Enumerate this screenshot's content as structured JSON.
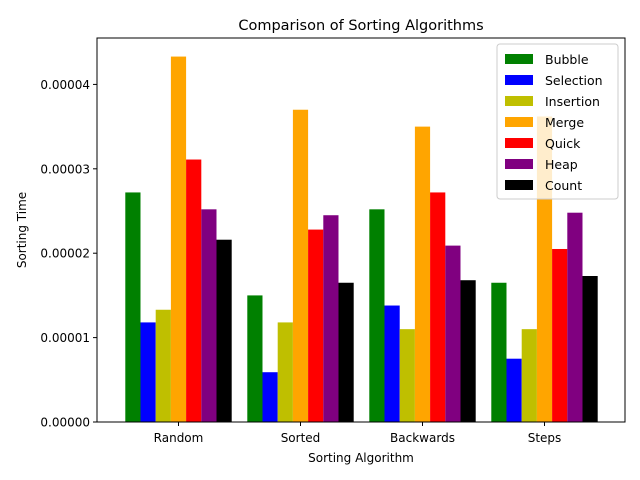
{
  "chart_data": {
    "type": "bar",
    "title": "Comparison of Sorting Algorithms",
    "xlabel": "Sorting Algorithm",
    "ylabel": "Sorting Time",
    "categories": [
      "Random",
      "Sorted",
      "Backwards",
      "Steps"
    ],
    "ylim": [
      0,
      4.55e-05
    ],
    "yticks": [
      "0.00000",
      "0.00001",
      "0.00002",
      "0.00003",
      "0.00004"
    ],
    "grid": false,
    "legend_position": "top-right",
    "series": [
      {
        "name": "Bubble",
        "color": "#008000",
        "values": [
          2.72e-05,
          1.5e-05,
          2.52e-05,
          1.65e-05
        ]
      },
      {
        "name": "Selection",
        "color": "#0000ff",
        "values": [
          1.18e-05,
          5.9e-06,
          1.38e-05,
          7.5e-06
        ]
      },
      {
        "name": "Insertion",
        "color": "#bfbf00",
        "values": [
          1.33e-05,
          1.18e-05,
          1.1e-05,
          1.1e-05
        ]
      },
      {
        "name": "Merge",
        "color": "#ffa500",
        "values": [
          4.33e-05,
          3.7e-05,
          3.5e-05,
          3.62e-05
        ]
      },
      {
        "name": "Quick",
        "color": "#ff0000",
        "values": [
          3.11e-05,
          2.28e-05,
          2.72e-05,
          2.05e-05
        ]
      },
      {
        "name": "Heap",
        "color": "#800080",
        "values": [
          2.52e-05,
          2.45e-05,
          2.09e-05,
          2.48e-05
        ]
      },
      {
        "name": "Count",
        "color": "#000000",
        "values": [
          2.16e-05,
          1.65e-05,
          1.68e-05,
          1.73e-05
        ]
      }
    ]
  }
}
